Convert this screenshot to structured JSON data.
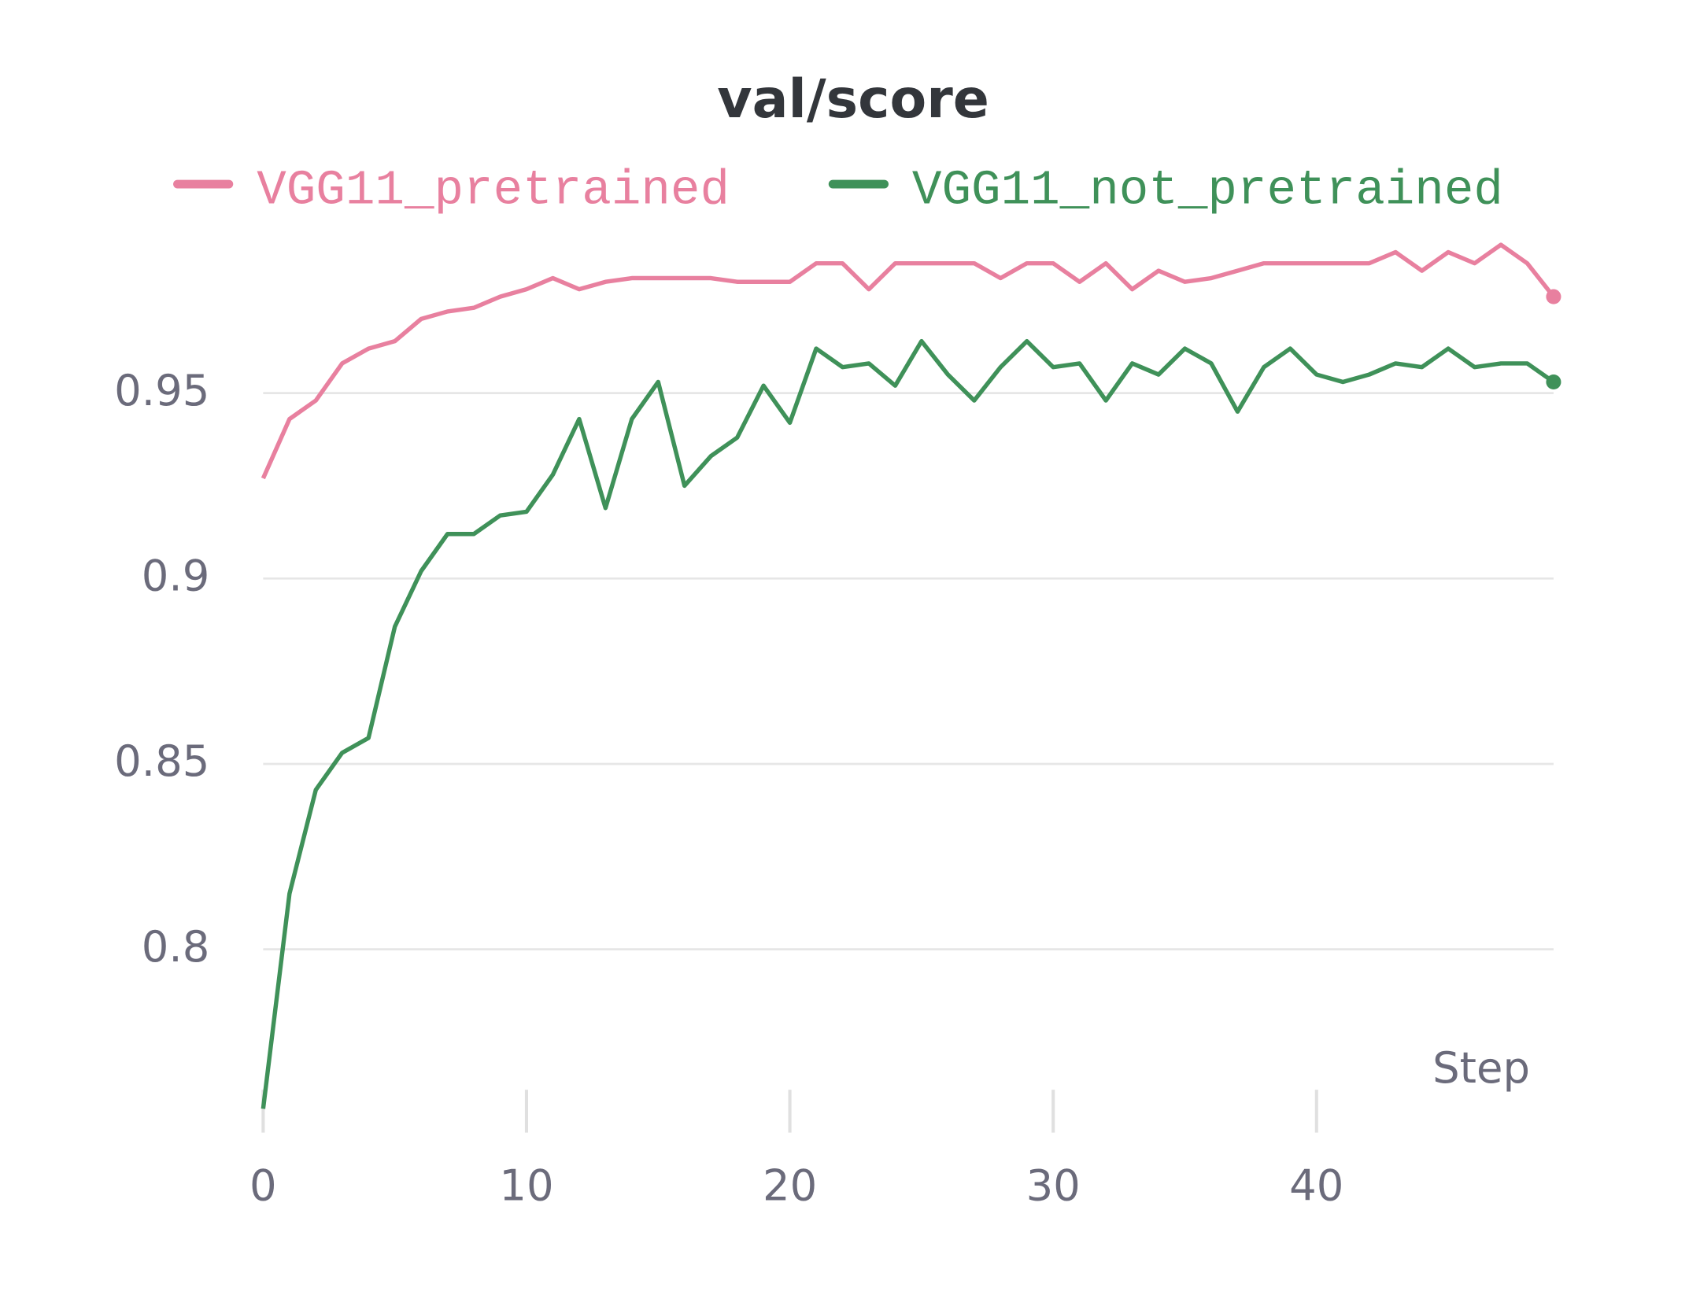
{
  "chart_data": {
    "type": "line",
    "title": "val/score",
    "x_label": "Step",
    "x": [
      0,
      1,
      2,
      3,
      4,
      5,
      6,
      7,
      8,
      9,
      10,
      11,
      12,
      13,
      14,
      15,
      16,
      17,
      18,
      19,
      20,
      21,
      22,
      23,
      24,
      25,
      26,
      27,
      28,
      29,
      30,
      31,
      32,
      33,
      34,
      35,
      36,
      37,
      38,
      39,
      40,
      41,
      42,
      43,
      44,
      45,
      46,
      47,
      48,
      49
    ],
    "series": [
      {
        "name": "VGG11_pretrained",
        "color": "#e8809f",
        "values": [
          0.927,
          0.943,
          0.948,
          0.958,
          0.962,
          0.964,
          0.97,
          0.972,
          0.973,
          0.976,
          0.978,
          0.981,
          0.978,
          0.98,
          0.981,
          0.981,
          0.981,
          0.981,
          0.98,
          0.98,
          0.98,
          0.985,
          0.985,
          0.978,
          0.985,
          0.985,
          0.985,
          0.985,
          0.981,
          0.985,
          0.985,
          0.98,
          0.985,
          0.978,
          0.983,
          0.98,
          0.981,
          0.983,
          0.985,
          0.985,
          0.985,
          0.985,
          0.985,
          0.988,
          0.983,
          0.988,
          0.985,
          0.99,
          0.985,
          0.976
        ]
      },
      {
        "name": "VGG11_not_pretrained",
        "color": "#3f9159",
        "values": [
          0.757,
          0.815,
          0.843,
          0.853,
          0.857,
          0.887,
          0.902,
          0.912,
          0.912,
          0.917,
          0.918,
          0.928,
          0.943,
          0.919,
          0.943,
          0.953,
          0.925,
          0.933,
          0.938,
          0.952,
          0.942,
          0.962,
          0.957,
          0.958,
          0.952,
          0.964,
          0.955,
          0.948,
          0.957,
          0.964,
          0.957,
          0.958,
          0.948,
          0.958,
          0.955,
          0.962,
          0.958,
          0.945,
          0.957,
          0.962,
          0.955,
          0.953,
          0.955,
          0.958,
          0.957,
          0.962,
          0.957,
          0.958,
          0.958,
          0.953
        ]
      }
    ],
    "xlim": [
      0,
      49
    ],
    "xticks": [
      0,
      10,
      20,
      30,
      40
    ],
    "ylim": [
      0.75,
      1.0
    ],
    "yticks": [
      0.8,
      0.85,
      0.9,
      0.95
    ],
    "grid": true
  }
}
